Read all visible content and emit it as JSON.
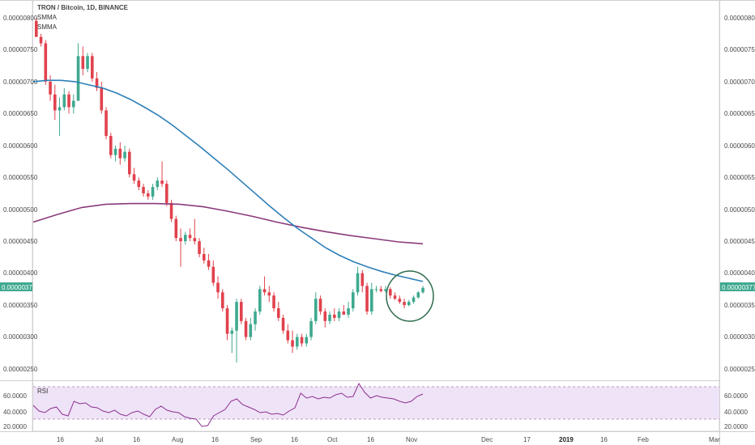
{
  "chart_data": {
    "type": "candlestick",
    "symbol_title": "TRON / Bitcoin, 1D, BINANCE",
    "indicators": [
      {
        "name": "SMMA",
        "color": "#2e7fb8"
      },
      {
        "name": "SMMA",
        "color": "#8b3a7a"
      }
    ],
    "last_price_label": "0.00000377",
    "price_axis": {
      "ticks": [
        "0.00000800",
        "0.00000750",
        "0.00000700",
        "0.00000650",
        "0.00000600",
        "0.00000550",
        "0.00000500",
        "0.00000450",
        "0.00000400",
        "0.00000350",
        "0.00000300",
        "0.00000250"
      ],
      "ylim": [
        2.3e-06,
        8.15e-06
      ]
    },
    "time_axis": {
      "labels": [
        "16",
        "Jul",
        "16",
        "Aug",
        "16",
        "Sep",
        "16",
        "Oct",
        "16",
        "Nov",
        "Dec",
        "17",
        "2019",
        "16",
        "Feb",
        "Mar"
      ],
      "bold_labels": [
        "2019"
      ]
    },
    "colors": {
      "up": "#3fa98f",
      "down": "#e0424d",
      "rsi_line": "#8b2f8f",
      "rsi_band": "#efe3f7",
      "marker_circle": "#2e6b4d"
    },
    "candles": [
      {
        "o": 7.95,
        "h": 8.0,
        "l": 7.7,
        "c": 7.7
      },
      {
        "o": 7.7,
        "h": 7.75,
        "l": 7.55,
        "c": 7.6
      },
      {
        "o": 7.6,
        "h": 7.65,
        "l": 6.95,
        "c": 7.0
      },
      {
        "o": 7.0,
        "h": 7.1,
        "l": 6.7,
        "c": 6.8
      },
      {
        "o": 6.8,
        "h": 6.95,
        "l": 6.4,
        "c": 6.55
      },
      {
        "o": 6.55,
        "h": 6.75,
        "l": 6.15,
        "c": 6.6
      },
      {
        "o": 6.6,
        "h": 6.9,
        "l": 6.55,
        "c": 6.8
      },
      {
        "o": 6.8,
        "h": 6.85,
        "l": 6.5,
        "c": 6.6
      },
      {
        "o": 6.6,
        "h": 6.8,
        "l": 6.5,
        "c": 6.7
      },
      {
        "o": 6.7,
        "h": 7.6,
        "l": 6.7,
        "c": 7.4
      },
      {
        "o": 7.4,
        "h": 7.55,
        "l": 7.1,
        "c": 7.2
      },
      {
        "o": 7.2,
        "h": 7.45,
        "l": 7.15,
        "c": 7.4
      },
      {
        "o": 7.4,
        "h": 7.45,
        "l": 7.0,
        "c": 7.05
      },
      {
        "o": 7.05,
        "h": 7.15,
        "l": 6.85,
        "c": 6.9
      },
      {
        "o": 6.9,
        "h": 7.0,
        "l": 6.5,
        "c": 6.55
      },
      {
        "o": 6.55,
        "h": 6.6,
        "l": 6.1,
        "c": 6.15
      },
      {
        "o": 6.15,
        "h": 6.2,
        "l": 5.8,
        "c": 5.85
      },
      {
        "o": 5.85,
        "h": 6.0,
        "l": 5.75,
        "c": 5.95
      },
      {
        "o": 5.95,
        "h": 6.05,
        "l": 5.7,
        "c": 5.8
      },
      {
        "o": 5.8,
        "h": 6.0,
        "l": 5.75,
        "c": 5.9
      },
      {
        "o": 5.9,
        "h": 5.95,
        "l": 5.5,
        "c": 5.55
      },
      {
        "o": 5.55,
        "h": 5.65,
        "l": 5.4,
        "c": 5.45
      },
      {
        "o": 5.45,
        "h": 5.5,
        "l": 5.3,
        "c": 5.35
      },
      {
        "o": 5.35,
        "h": 5.4,
        "l": 5.2,
        "c": 5.25
      },
      {
        "o": 5.25,
        "h": 5.3,
        "l": 5.15,
        "c": 5.2
      },
      {
        "o": 5.2,
        "h": 5.4,
        "l": 5.15,
        "c": 5.35
      },
      {
        "o": 5.35,
        "h": 5.5,
        "l": 5.3,
        "c": 5.45
      },
      {
        "o": 5.45,
        "h": 5.75,
        "l": 5.35,
        "c": 5.4
      },
      {
        "o": 5.4,
        "h": 5.45,
        "l": 5.05,
        "c": 5.1
      },
      {
        "o": 5.1,
        "h": 5.15,
        "l": 4.8,
        "c": 4.85
      },
      {
        "o": 4.85,
        "h": 4.9,
        "l": 4.5,
        "c": 4.55
      },
      {
        "o": 4.55,
        "h": 4.7,
        "l": 4.1,
        "c": 4.5
      },
      {
        "o": 4.5,
        "h": 4.65,
        "l": 4.45,
        "c": 4.6
      },
      {
        "o": 4.6,
        "h": 4.7,
        "l": 4.5,
        "c": 4.55
      },
      {
        "o": 4.55,
        "h": 4.85,
        "l": 4.45,
        "c": 4.5
      },
      {
        "o": 4.5,
        "h": 4.55,
        "l": 4.25,
        "c": 4.3
      },
      {
        "o": 4.3,
        "h": 4.4,
        "l": 4.15,
        "c": 4.2
      },
      {
        "o": 4.2,
        "h": 4.3,
        "l": 4.05,
        "c": 4.1
      },
      {
        "o": 4.1,
        "h": 4.2,
        "l": 3.8,
        "c": 3.85
      },
      {
        "o": 3.85,
        "h": 3.95,
        "l": 3.6,
        "c": 3.7
      },
      {
        "o": 3.7,
        "h": 3.75,
        "l": 3.4,
        "c": 3.45
      },
      {
        "o": 3.45,
        "h": 3.5,
        "l": 2.95,
        "c": 3.05
      },
      {
        "o": 3.05,
        "h": 3.15,
        "l": 2.75,
        "c": 3.1
      },
      {
        "o": 3.1,
        "h": 3.6,
        "l": 2.6,
        "c": 3.55
      },
      {
        "o": 3.55,
        "h": 3.6,
        "l": 3.2,
        "c": 3.25
      },
      {
        "o": 3.25,
        "h": 3.3,
        "l": 2.95,
        "c": 3.0
      },
      {
        "o": 3.0,
        "h": 3.3,
        "l": 2.95,
        "c": 3.2
      },
      {
        "o": 3.2,
        "h": 3.45,
        "l": 3.1,
        "c": 3.4
      },
      {
        "o": 3.4,
        "h": 3.8,
        "l": 3.35,
        "c": 3.75
      },
      {
        "o": 3.75,
        "h": 3.95,
        "l": 3.65,
        "c": 3.7
      },
      {
        "o": 3.7,
        "h": 3.8,
        "l": 3.55,
        "c": 3.65
      },
      {
        "o": 3.65,
        "h": 3.7,
        "l": 3.4,
        "c": 3.45
      },
      {
        "o": 3.45,
        "h": 3.55,
        "l": 3.25,
        "c": 3.3
      },
      {
        "o": 3.3,
        "h": 3.35,
        "l": 3.05,
        "c": 3.1
      },
      {
        "o": 3.1,
        "h": 3.2,
        "l": 2.9,
        "c": 2.95
      },
      {
        "o": 2.95,
        "h": 3.1,
        "l": 2.75,
        "c": 2.85
      },
      {
        "o": 2.85,
        "h": 3.05,
        "l": 2.8,
        "c": 3.0
      },
      {
        "o": 3.0,
        "h": 3.05,
        "l": 2.85,
        "c": 2.9
      },
      {
        "o": 2.9,
        "h": 3.05,
        "l": 2.85,
        "c": 3.0
      },
      {
        "o": 3.0,
        "h": 3.3,
        "l": 2.95,
        "c": 3.25
      },
      {
        "o": 3.25,
        "h": 3.7,
        "l": 3.2,
        "c": 3.6
      },
      {
        "o": 3.6,
        "h": 3.65,
        "l": 3.35,
        "c": 3.4
      },
      {
        "o": 3.4,
        "h": 3.45,
        "l": 3.15,
        "c": 3.25
      },
      {
        "o": 3.25,
        "h": 3.4,
        "l": 3.2,
        "c": 3.35
      },
      {
        "o": 3.35,
        "h": 3.45,
        "l": 3.25,
        "c": 3.3
      },
      {
        "o": 3.3,
        "h": 3.45,
        "l": 3.25,
        "c": 3.4
      },
      {
        "o": 3.4,
        "h": 3.5,
        "l": 3.35,
        "c": 3.35
      },
      {
        "o": 3.35,
        "h": 3.55,
        "l": 3.3,
        "c": 3.45
      },
      {
        "o": 3.45,
        "h": 3.75,
        "l": 3.4,
        "c": 3.7
      },
      {
        "o": 3.7,
        "h": 4.1,
        "l": 3.65,
        "c": 4.0
      },
      {
        "o": 4.0,
        "h": 4.05,
        "l": 3.7,
        "c": 3.8
      },
      {
        "o": 3.8,
        "h": 3.85,
        "l": 3.35,
        "c": 3.4
      },
      {
        "o": 3.4,
        "h": 3.85,
        "l": 3.35,
        "c": 3.75
      },
      {
        "o": 3.75,
        "h": 3.8,
        "l": 3.7,
        "c": 3.75
      },
      {
        "o": 3.75,
        "h": 3.8,
        "l": 3.7,
        "c": 3.72
      },
      {
        "o": 3.72,
        "h": 3.8,
        "l": 3.7,
        "c": 3.75
      },
      {
        "o": 3.75,
        "h": 3.78,
        "l": 3.6,
        "c": 3.65
      },
      {
        "o": 3.65,
        "h": 3.7,
        "l": 3.58,
        "c": 3.6
      },
      {
        "o": 3.6,
        "h": 3.65,
        "l": 3.52,
        "c": 3.55
      },
      {
        "o": 3.55,
        "h": 3.6,
        "l": 3.45,
        "c": 3.5
      },
      {
        "o": 3.5,
        "h": 3.58,
        "l": 3.48,
        "c": 3.55
      },
      {
        "o": 3.55,
        "h": 3.65,
        "l": 3.52,
        "c": 3.62
      },
      {
        "o": 3.62,
        "h": 3.72,
        "l": 3.6,
        "c": 3.7
      },
      {
        "o": 3.7,
        "h": 3.8,
        "l": 3.68,
        "c": 3.77
      }
    ],
    "smma_fast": [
      7.0,
      7.02,
      7.02,
      7.0,
      6.95,
      6.9,
      6.82,
      6.72,
      6.6,
      6.47,
      6.32,
      6.15,
      5.98,
      5.8,
      5.62,
      5.43,
      5.24,
      5.05,
      4.87,
      4.7,
      4.55,
      4.4,
      4.28,
      4.18,
      4.1,
      4.03,
      3.97,
      3.92,
      3.87
    ],
    "smma_slow": [
      4.8,
      4.92,
      5.03,
      5.08,
      5.09,
      5.09,
      5.08,
      5.04,
      4.97,
      4.89,
      4.8,
      4.72,
      4.65,
      4.59,
      4.54,
      4.49,
      4.46
    ],
    "rsi": {
      "label": "RSI",
      "ticks": [
        "60.0000",
        "40.0000",
        "20.0000"
      ],
      "ylim": [
        20,
        75
      ],
      "band": [
        30,
        70
      ],
      "values": [
        47,
        40,
        38,
        43,
        45,
        36,
        34,
        52,
        49,
        50,
        45,
        44,
        40,
        38,
        41,
        36,
        34,
        38,
        40,
        36,
        33,
        42,
        46,
        41,
        39,
        38,
        33,
        31,
        30,
        21,
        22,
        34,
        38,
        42,
        52,
        55,
        48,
        45,
        42,
        38,
        39,
        36,
        37,
        35,
        40,
        44,
        62,
        56,
        58,
        55,
        57,
        56,
        60,
        62,
        57,
        58,
        74,
        63,
        56,
        59,
        57,
        56,
        55,
        52,
        50,
        52,
        58,
        61
      ]
    }
  }
}
